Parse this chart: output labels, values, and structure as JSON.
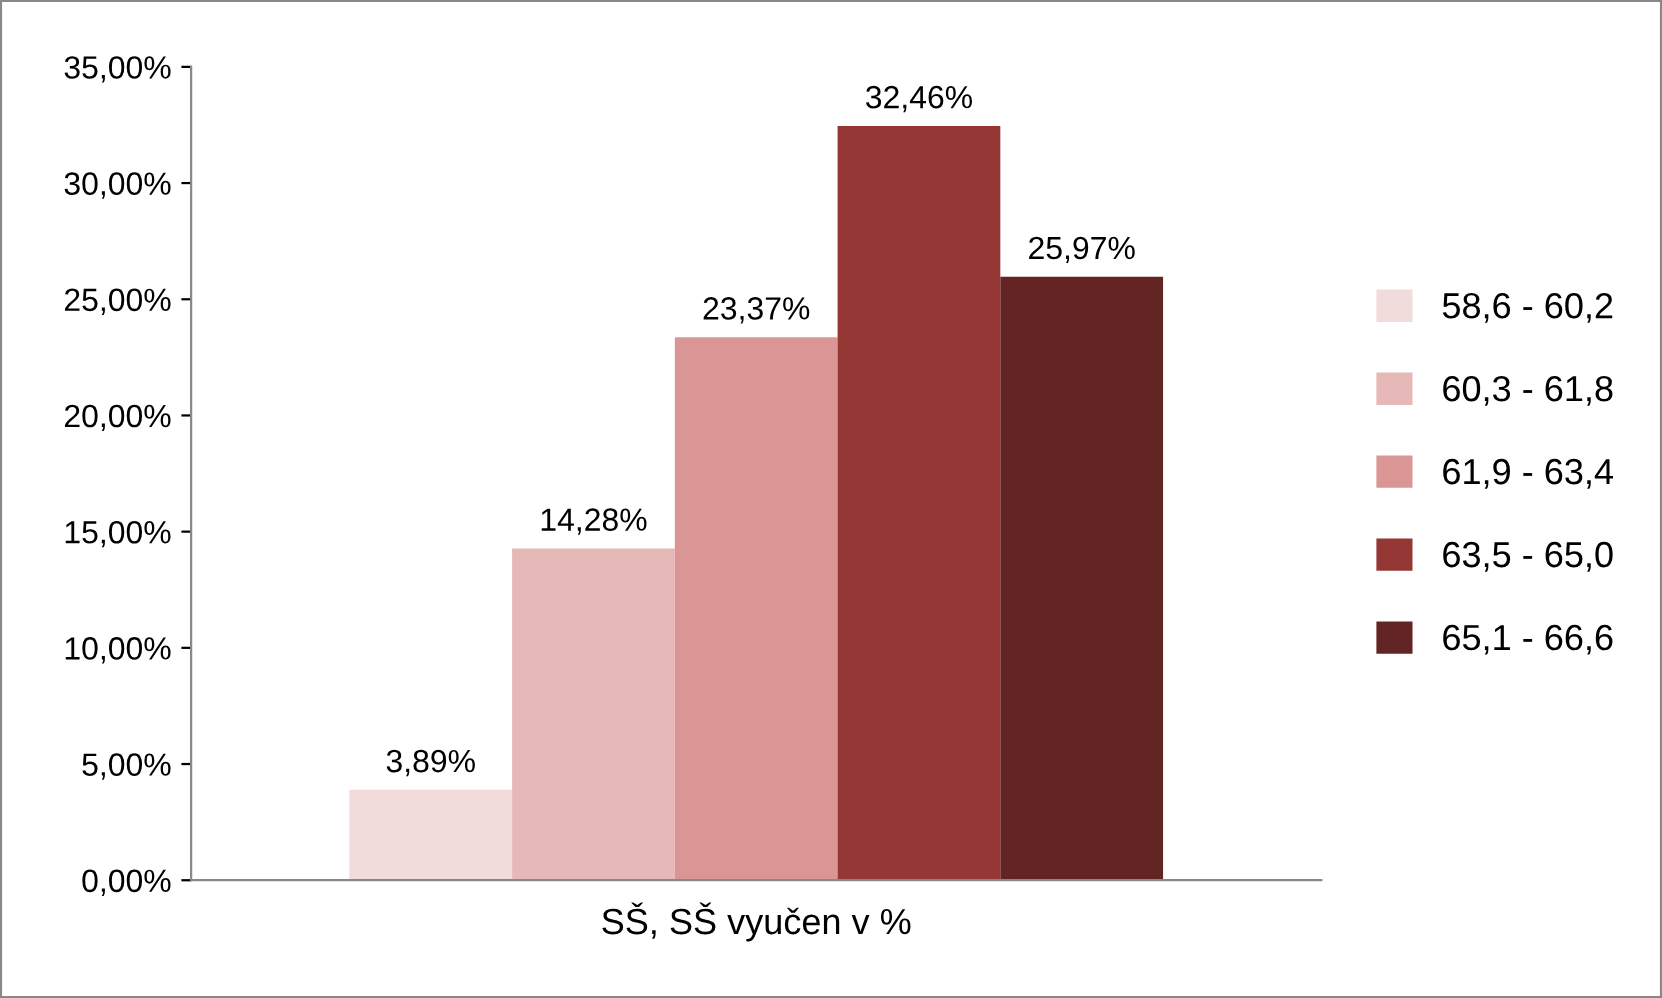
{
  "chart_data": {
    "type": "bar",
    "categories": [
      "SŠ, SŠ vyučen v %"
    ],
    "series": [
      {
        "name": "58,6 - 60,2",
        "color": "#f2dcdb",
        "values": [
          3.89
        ],
        "value_labels": [
          "3,89%"
        ]
      },
      {
        "name": "60,3 - 61,8",
        "color": "#e6b9b8",
        "values": [
          14.28
        ],
        "value_labels": [
          "14,28%"
        ]
      },
      {
        "name": "61,9 - 63,4",
        "color": "#d99694",
        "values": [
          23.37
        ],
        "value_labels": [
          "23,37%"
        ]
      },
      {
        "name": "63,5 - 65,0",
        "color": "#953735",
        "values": [
          32.46
        ],
        "value_labels": [
          "32,46%"
        ]
      },
      {
        "name": "65,1 - 66,6",
        "color": "#632523",
        "values": [
          25.97
        ],
        "value_labels": [
          "25,97%"
        ]
      }
    ],
    "ylim": [
      0,
      35
    ],
    "yticks": [
      {
        "value": 0,
        "label": "0,00%"
      },
      {
        "value": 5,
        "label": "5,00%"
      },
      {
        "value": 10,
        "label": "10,00%"
      },
      {
        "value": 15,
        "label": "15,00%"
      },
      {
        "value": 20,
        "label": "20,00%"
      },
      {
        "value": 25,
        "label": "25,00%"
      },
      {
        "value": 30,
        "label": "30,00%"
      },
      {
        "value": 35,
        "label": "35,00%"
      }
    ],
    "grid": false,
    "legend": "right"
  }
}
